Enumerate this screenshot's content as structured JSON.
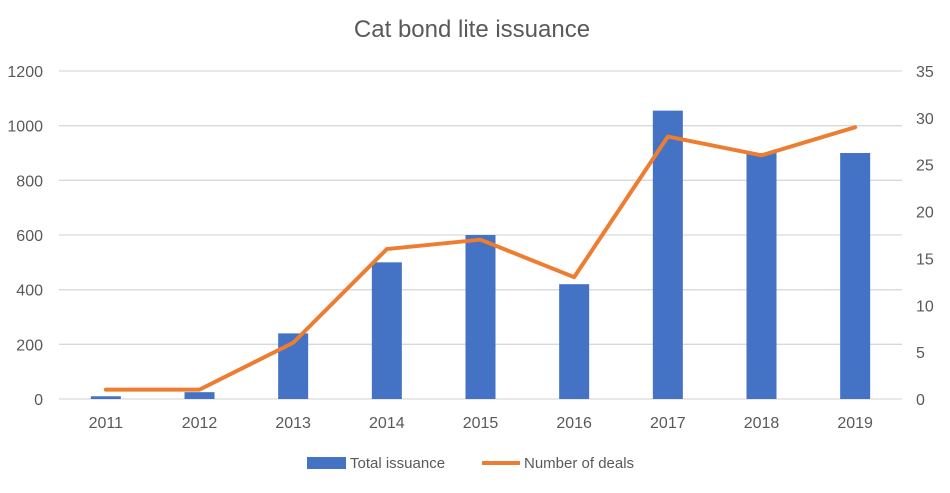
{
  "chart_data": {
    "type": "bar+line",
    "title": "Cat bond lite issuance",
    "categories": [
      "2011",
      "2012",
      "2013",
      "2014",
      "2015",
      "2016",
      "2017",
      "2018",
      "2019"
    ],
    "series": [
      {
        "name": "Total issuance",
        "type": "bar",
        "axis": "left",
        "color": "#4472C4",
        "values": [
          10,
          25,
          240,
          500,
          600,
          420,
          1055,
          900,
          900
        ]
      },
      {
        "name": "Number of deals",
        "type": "line",
        "axis": "right",
        "color": "#ED7D31",
        "values": [
          1,
          1,
          6,
          16,
          17,
          13,
          28,
          26,
          29
        ]
      }
    ],
    "y_left": {
      "lim": [
        0,
        1200
      ],
      "ticks": [
        0,
        200,
        400,
        600,
        800,
        1000,
        1200
      ]
    },
    "y_right": {
      "lim": [
        0,
        35
      ],
      "ticks": [
        0,
        5,
        10,
        15,
        20,
        25,
        30,
        35
      ]
    },
    "grid": true,
    "legend": "bottom"
  }
}
